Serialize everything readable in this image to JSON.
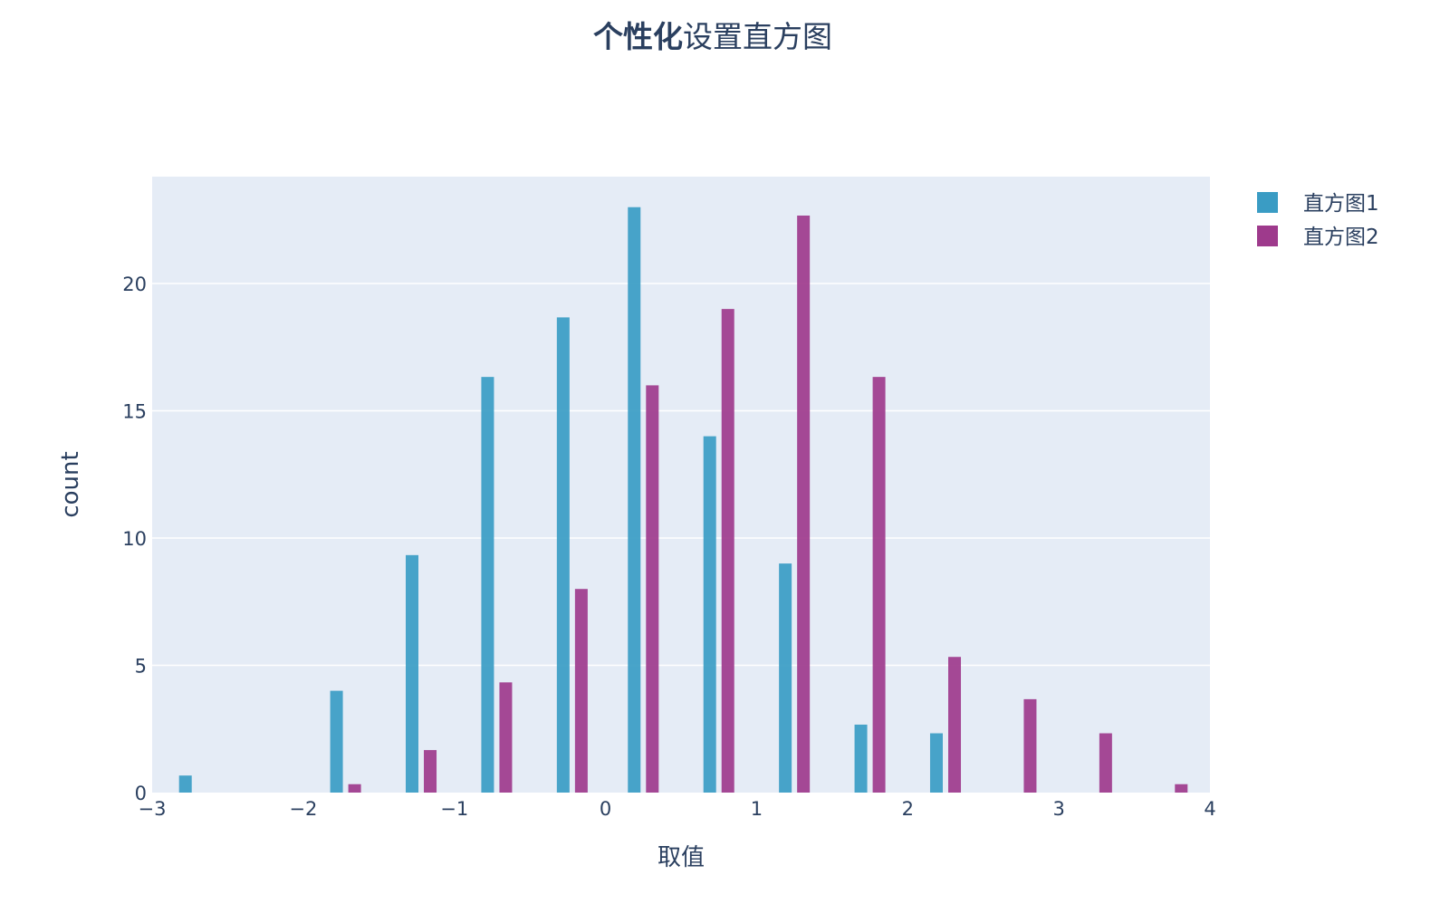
{
  "chart_data": {
    "type": "bar",
    "title_bold": "个性化",
    "title_rest": "设置直方图",
    "xlabel": "取值",
    "ylabel": "count",
    "xlim": [
      -3,
      4
    ],
    "ylim": [
      0,
      24.2
    ],
    "xticks": [
      -3,
      -2,
      -1,
      0,
      1,
      2,
      3,
      4
    ],
    "xtick_labels": [
      "−3",
      "−2",
      "−1",
      "0",
      "1",
      "2",
      "3",
      "4"
    ],
    "yticks": [
      0,
      5,
      10,
      15,
      20
    ],
    "ytick_labels": [
      "0",
      "5",
      "10",
      "15",
      "20"
    ],
    "grid": true,
    "legend_position": "top-right",
    "plot_bgcolor": "#E5ECF6",
    "series": [
      {
        "name": "直方图1",
        "color": "#3A9CC4",
        "x": [
          -2.78,
          -1.78,
          -1.28,
          -0.78,
          -0.28,
          0.19,
          0.69,
          1.19,
          1.69,
          2.19
        ],
        "values": [
          0.67,
          4.0,
          9.33,
          16.33,
          18.67,
          23.0,
          14.0,
          9.0,
          2.67,
          2.33
        ]
      },
      {
        "name": "直方图2",
        "color": "#9E3A8C",
        "x": [
          -1.66,
          -1.16,
          -0.66,
          -0.16,
          0.31,
          0.81,
          1.31,
          1.81,
          2.31,
          2.81,
          3.31,
          3.81
        ],
        "values": [
          0.33,
          1.67,
          4.33,
          8.0,
          16.0,
          19.0,
          22.67,
          16.33,
          5.33,
          3.67,
          2.33,
          0.33
        ]
      }
    ]
  }
}
